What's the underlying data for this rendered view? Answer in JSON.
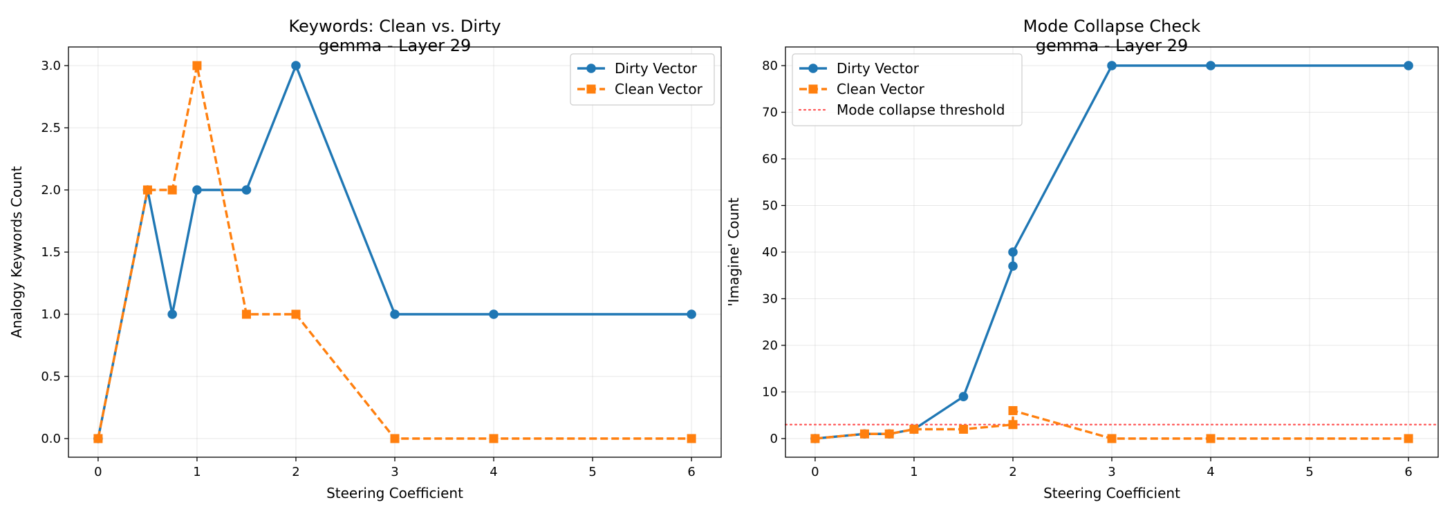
{
  "colors": {
    "dirty": "#1f77b4",
    "clean": "#ff7f0e",
    "threshold": "#ff5555",
    "grid": "#b0b0b0"
  },
  "chart_data": [
    {
      "type": "line",
      "title": "Keywords: Clean vs. Dirty",
      "subtitle": "gemma - Layer 29",
      "xlabel": "Steering Coefficient",
      "ylabel": "Analogy Keywords Count",
      "xlim": [
        -0.3,
        6.3
      ],
      "ylim": [
        -0.15,
        3.15
      ],
      "xticks": [
        0,
        1,
        2,
        3,
        4,
        5,
        6
      ],
      "yticks": [
        0.0,
        0.5,
        1.0,
        1.5,
        2.0,
        2.5,
        3.0
      ],
      "ytick_decimals": 1,
      "grid": true,
      "legend_position": "upper right",
      "series": [
        {
          "name": "Dirty Vector",
          "marker": "circle",
          "style": "solid",
          "x": [
            0,
            0.5,
            0.75,
            1,
            1.5,
            2,
            3,
            4,
            6
          ],
          "y": [
            0,
            2,
            1,
            2,
            2,
            3,
            1,
            1,
            1
          ]
        },
        {
          "name": "Clean Vector",
          "marker": "square",
          "style": "dashed",
          "x": [
            0,
            0.5,
            0.75,
            1,
            1.5,
            2,
            3,
            4,
            6
          ],
          "y": [
            0,
            2,
            2,
            3,
            1,
            1,
            0,
            0,
            0
          ]
        }
      ]
    },
    {
      "type": "line",
      "title": "Mode Collapse Check",
      "subtitle": "gemma - Layer 29",
      "xlabel": "Steering Coefficient",
      "ylabel": "'Imagine' Count",
      "xlim": [
        -0.3,
        6.3
      ],
      "ylim": [
        -4,
        84
      ],
      "xticks": [
        0,
        1,
        2,
        3,
        4,
        5,
        6
      ],
      "yticks": [
        0,
        10,
        20,
        30,
        40,
        50,
        60,
        70,
        80
      ],
      "ytick_decimals": 0,
      "grid": true,
      "legend_position": "upper left",
      "series": [
        {
          "name": "Dirty Vector",
          "marker": "circle",
          "style": "solid",
          "x": [
            0,
            0.5,
            0.75,
            1,
            1.5,
            2,
            2,
            3,
            4,
            6
          ],
          "y": [
            0,
            1,
            1,
            2,
            9,
            37,
            40,
            80,
            80,
            80
          ]
        },
        {
          "name": "Clean Vector",
          "marker": "square",
          "style": "dashed",
          "x": [
            0,
            0.5,
            0.75,
            1,
            1.5,
            2,
            2,
            3,
            4,
            6
          ],
          "y": [
            0,
            1,
            1,
            2,
            2,
            3,
            6,
            0,
            0,
            0
          ]
        }
      ],
      "reference_lines": [
        {
          "name": "Mode collapse threshold",
          "y": 3,
          "style": "dotted"
        }
      ]
    }
  ]
}
